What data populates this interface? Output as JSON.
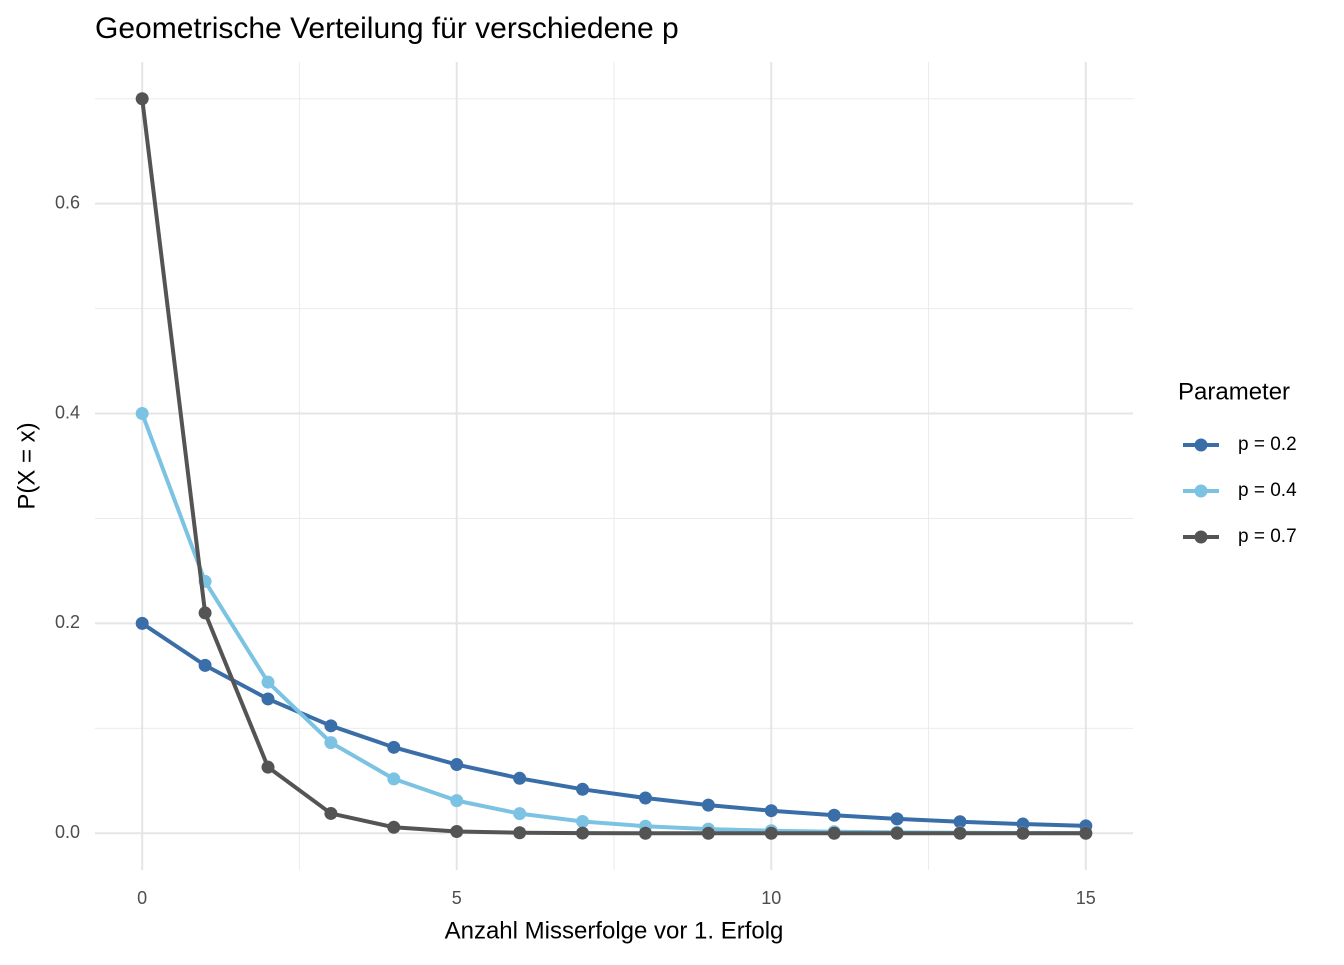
{
  "chart_data": {
    "type": "line",
    "title": "Geometrische Verteilung für verschiedene p",
    "x_label": "Anzahl Misserfolge vor 1. Erfolg",
    "y_label": "P(X = x)",
    "legend_title": "Parameter",
    "legend_position": "right",
    "x": [
      0,
      1,
      2,
      3,
      4,
      5,
      6,
      7,
      8,
      9,
      10,
      11,
      12,
      13,
      14,
      15
    ],
    "series": [
      {
        "name": "p = 0.2",
        "color": "#3a6ea8",
        "values": [
          0.2,
          0.16,
          0.128,
          0.1024,
          0.0819,
          0.0655,
          0.0524,
          0.0419,
          0.0336,
          0.0268,
          0.0215,
          0.0172,
          0.0137,
          0.011,
          0.0088,
          0.007
        ]
      },
      {
        "name": "p = 0.4",
        "color": "#7cc3e3",
        "values": [
          0.4,
          0.24,
          0.144,
          0.0864,
          0.0518,
          0.0311,
          0.0187,
          0.0112,
          0.0067,
          0.004,
          0.0024,
          0.0015,
          0.0009,
          0.0005,
          0.0003,
          0.0002
        ]
      },
      {
        "name": "p = 0.7",
        "color": "#545454",
        "values": [
          0.7,
          0.21,
          0.063,
          0.0189,
          0.0057,
          0.0017,
          0.0005,
          0.0002,
          0.0,
          0.0,
          0.0,
          0.0,
          0.0,
          0.0,
          0.0,
          0.0
        ]
      }
    ],
    "xlim": [
      -0.75,
      15.75
    ],
    "ylim": [
      -0.035,
      0.735
    ],
    "xticks": [
      0,
      5,
      10,
      15
    ],
    "yticks": [
      {
        "value": 0,
        "label": "0.0"
      },
      0.2,
      0.4,
      0.6
    ],
    "x_minor_grid": [
      2.5,
      7.5,
      12.5
    ],
    "y_minor_grid": [
      0.1,
      0.3,
      0.5,
      0.7
    ],
    "grid": true
  }
}
